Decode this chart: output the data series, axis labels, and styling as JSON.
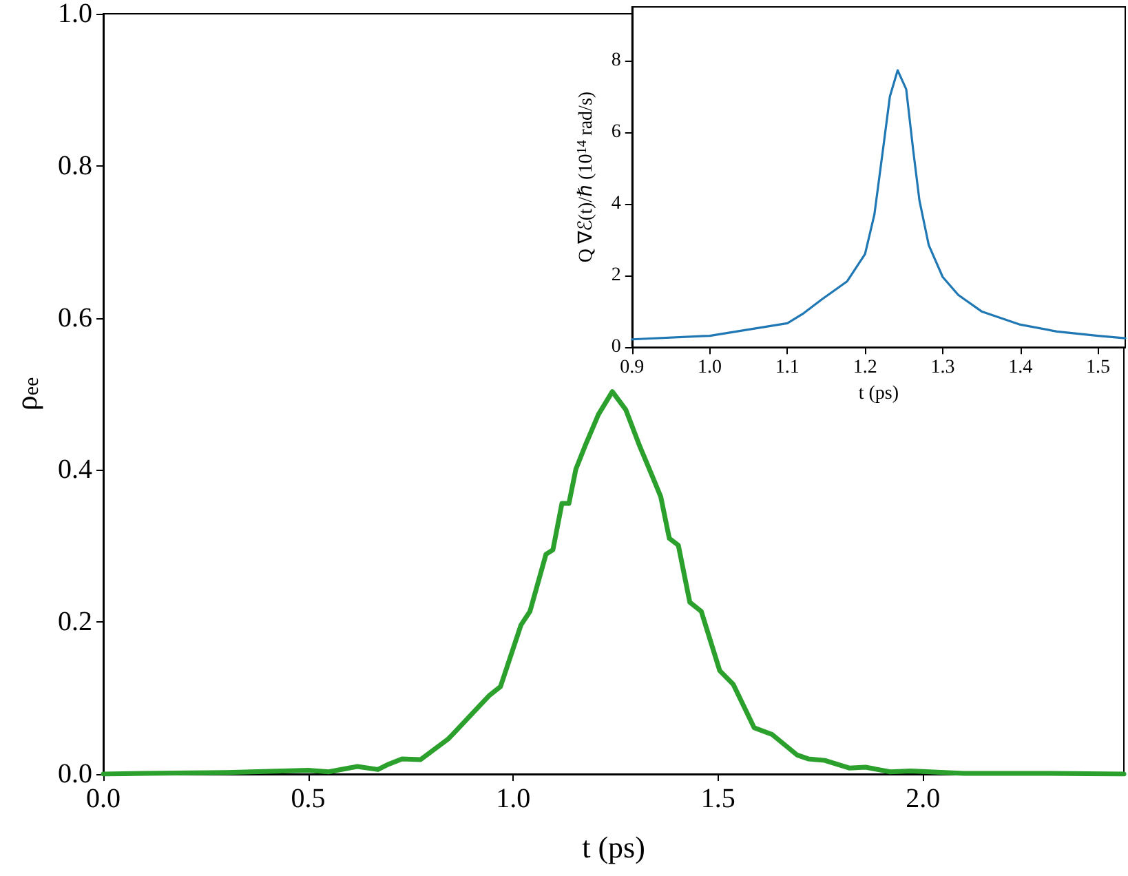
{
  "chart_data": [
    {
      "type": "line",
      "xlabel": "t (ps)",
      "ylabel": "ρ$_{ee}$",
      "xlim": [
        0,
        2.49
      ],
      "ylim": [
        0,
        1
      ],
      "xticks": [
        {
          "value": 0,
          "label": "0.0"
        },
        0.5,
        {
          "value": 1,
          "label": "1.0"
        },
        1.5,
        {
          "value": 2,
          "label": "2.0"
        }
      ],
      "yticks": [
        {
          "value": 0,
          "label": "0.0"
        },
        0.2,
        0.4,
        0.6,
        0.8,
        {
          "value": 1,
          "label": "1.0"
        }
      ],
      "grid": false,
      "x": [
        0,
        0.1,
        0.3,
        0.5,
        0.55,
        0.62,
        0.67,
        0.696,
        0.729,
        0.774,
        0.841,
        0.852,
        0.941,
        0.969,
        1.019,
        1.041,
        1.08,
        1.097,
        1.119,
        1.136,
        1.153,
        1.175,
        1.208,
        1.242,
        1.275,
        1.309,
        1.337,
        1.36,
        1.381,
        1.403,
        1.431,
        1.459,
        1.504,
        1.537,
        1.588,
        1.632,
        1.693,
        1.72,
        1.76,
        1.82,
        1.86,
        1.92,
        1.97,
        2.1,
        2.3,
        2.49
      ],
      "series": [
        {
          "color": "#2ca02c",
          "values": [
            0,
            0.001,
            0.002,
            0.005,
            0.003,
            0.01,
            0.006,
            0.013,
            0.02,
            0.019,
            0.046,
            0.052,
            0.103,
            0.115,
            0.196,
            0.214,
            0.289,
            0.295,
            0.356,
            0.356,
            0.401,
            0.431,
            0.473,
            0.503,
            0.479,
            0.431,
            0.395,
            0.365,
            0.31,
            0.301,
            0.226,
            0.214,
            0.136,
            0.118,
            0.061,
            0.052,
            0.025,
            0.02,
            0.018,
            0.008,
            0.009,
            0.003,
            0.004,
            0.001,
            0.001,
            0
          ]
        }
      ]
    },
    {
      "type": "line",
      "xlabel": "t (ps)",
      "ylabel": "Q ∇ℰ(t)/ℏ (10$^{14}$ rad/s)",
      "xlim": [
        0.9,
        1.535
      ],
      "ylim": [
        0,
        9.5
      ],
      "xticks": [
        0.9,
        {
          "value": 1,
          "label": "1.0"
        },
        1.1,
        1.2,
        1.3,
        1.4,
        1.5
      ],
      "yticks": [
        0,
        2,
        4,
        6,
        8
      ],
      "grid": false,
      "x": [
        0.9,
        1.0,
        1.1,
        1.121,
        1.144,
        1.177,
        1.2,
        1.212,
        1.223,
        1.232,
        1.242,
        1.253,
        1.262,
        1.27,
        1.282,
        1.3,
        1.32,
        1.35,
        1.4,
        1.447,
        1.5,
        1.535
      ],
      "series": [
        {
          "color": "#1f77b4",
          "values": [
            0.22,
            0.32,
            0.67,
            0.95,
            1.33,
            1.84,
            2.6,
            3.7,
            5.5,
            7.0,
            7.73,
            7.2,
            5.5,
            4.1,
            2.85,
            1.96,
            1.46,
            1.0,
            0.63,
            0.44,
            0.32,
            0.25
          ]
        }
      ]
    }
  ]
}
